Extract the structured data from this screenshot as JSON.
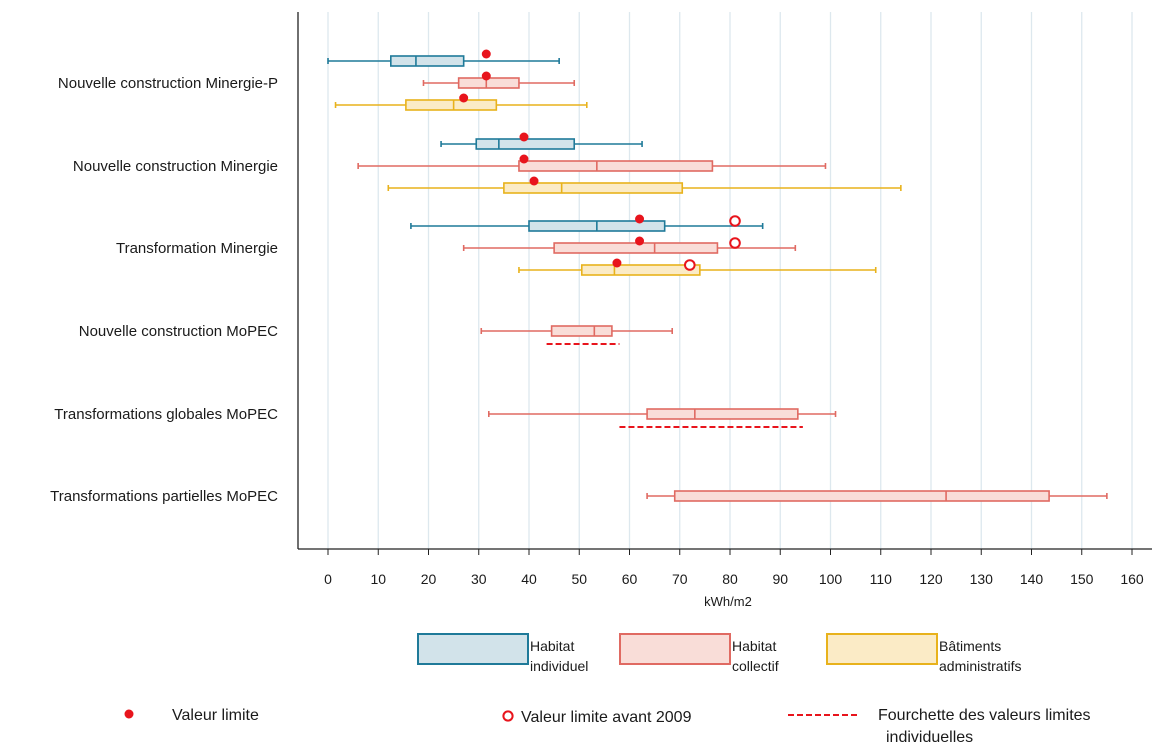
{
  "chart_data": {
    "type": "boxplot",
    "orientation": "horizontal",
    "xlabel": "kWh/m2",
    "xlim": [
      -6,
      164
    ],
    "xticks": [
      0,
      10,
      20,
      30,
      40,
      50,
      60,
      70,
      80,
      90,
      100,
      110,
      120,
      130,
      140,
      150,
      160
    ],
    "grid": "vertical",
    "categories": [
      "Nouvelle construction Minergie-P",
      "Nouvelle construction Minergie",
      "Transformation Minergie",
      "Nouvelle construction MoPEC",
      "Transformations globales MoPEC",
      "Transformations partielles MoPEC"
    ],
    "series": [
      {
        "key": "individuel",
        "name_lines": [
          "Habitat",
          "individuel"
        ],
        "stroke": "#1f7a99",
        "fill": "#d2e3ea"
      },
      {
        "key": "collectif",
        "name_lines": [
          "Habitat",
          "collectif"
        ],
        "stroke": "#e06a62",
        "fill": "#f9ddd8"
      },
      {
        "key": "admin",
        "name_lines": [
          "Bâtiments",
          "administratifs"
        ],
        "stroke": "#e8b21c",
        "fill": "#fbebc6"
      }
    ],
    "boxes": [
      {
        "category": 0,
        "series": "individuel",
        "min": 0,
        "q1": 12.5,
        "median": 17.5,
        "q3": 27,
        "max": 46
      },
      {
        "category": 0,
        "series": "collectif",
        "min": 19,
        "q1": 26,
        "median": 31.5,
        "q3": 38,
        "max": 49
      },
      {
        "category": 0,
        "series": "admin",
        "min": 1.5,
        "q1": 15.5,
        "median": 25,
        "q3": 33.5,
        "max": 51.5
      },
      {
        "category": 1,
        "series": "individuel",
        "min": 22.5,
        "q1": 29.5,
        "median": 34,
        "q3": 49,
        "max": 62.5
      },
      {
        "category": 1,
        "series": "collectif",
        "min": 6,
        "q1": 38,
        "median": 53.5,
        "q3": 76.5,
        "max": 99
      },
      {
        "category": 1,
        "series": "admin",
        "min": 12,
        "q1": 35,
        "median": 46.5,
        "q3": 70.5,
        "max": 114
      },
      {
        "category": 2,
        "series": "individuel",
        "min": 16.5,
        "q1": 40,
        "median": 53.5,
        "q3": 67,
        "max": 86.5
      },
      {
        "category": 2,
        "series": "collectif",
        "min": 27,
        "q1": 45,
        "median": 65,
        "q3": 77.5,
        "max": 93
      },
      {
        "category": 2,
        "series": "admin",
        "min": 38,
        "q1": 50.5,
        "median": 57,
        "q3": 74,
        "max": 109
      },
      {
        "category": 3,
        "series": "collectif",
        "min": 30.5,
        "q1": 44.5,
        "median": 53,
        "q3": 56.5,
        "max": 68.5
      },
      {
        "category": 4,
        "series": "collectif",
        "min": 32,
        "q1": 63.5,
        "median": 73,
        "q3": 93.5,
        "max": 101
      },
      {
        "category": 5,
        "series": "collectif",
        "min": 63.5,
        "q1": 69,
        "median": 123,
        "q3": 143.5,
        "max": 155
      }
    ],
    "limit_values": [
      {
        "category": 0,
        "series": "individuel",
        "value": 31.5
      },
      {
        "category": 0,
        "series": "collectif",
        "value": 31.5
      },
      {
        "category": 0,
        "series": "admin",
        "value": 27
      },
      {
        "category": 1,
        "series": "individuel",
        "value": 39
      },
      {
        "category": 1,
        "series": "collectif",
        "value": 39
      },
      {
        "category": 1,
        "series": "admin",
        "value": 41
      },
      {
        "category": 2,
        "series": "individuel",
        "value": 62
      },
      {
        "category": 2,
        "series": "collectif",
        "value": 62
      },
      {
        "category": 2,
        "series": "admin",
        "value": 57.5
      }
    ],
    "limit_values_before_2009": [
      {
        "category": 2,
        "series": "individuel",
        "value": 81
      },
      {
        "category": 2,
        "series": "collectif",
        "value": 81
      },
      {
        "category": 2,
        "series": "admin",
        "value": 72
      }
    ],
    "limit_ranges": [
      {
        "category": 3,
        "min": 43.5,
        "max": 58
      },
      {
        "category": 4,
        "min": 58,
        "max": 94.5
      }
    ],
    "legend": {
      "limit_value": "Valeur limite",
      "limit_value_before_2009": "Valeur limite avant 2009",
      "limit_range_lines": [
        "Fourchette des valeurs limites",
        "individuelles"
      ]
    },
    "colors": {
      "limit": "#e8141c",
      "axis": "#222222",
      "grid": "#dde8ee"
    }
  }
}
